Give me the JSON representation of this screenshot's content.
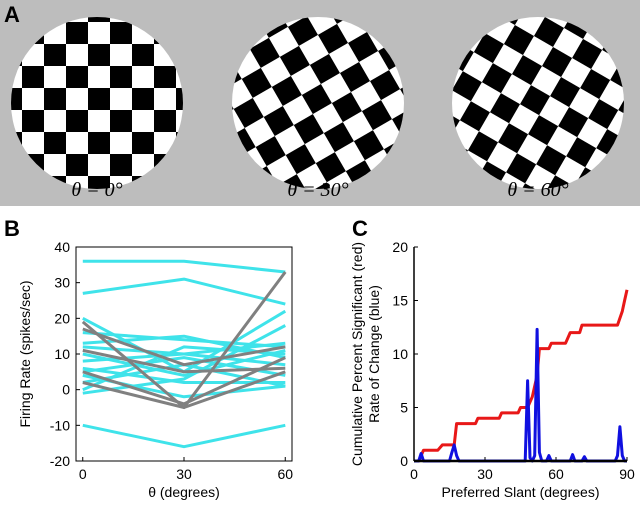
{
  "panel_a": {
    "label": "A",
    "captions": [
      "θ = 0°",
      "θ = 30°",
      "θ = 60°"
    ]
  },
  "chart_data": [
    {
      "type": "line",
      "panel_label": "B",
      "xlabel": "θ (degrees)",
      "ylabel": "Firing Rate (spikes/sec)",
      "x": [
        0,
        30,
        60
      ],
      "xlim": [
        -2,
        62
      ],
      "xticks": [
        0,
        30,
        60
      ],
      "ylim": [
        -20,
        40
      ],
      "yticks": [
        -20,
        -10,
        0,
        10,
        20,
        30,
        40
      ],
      "box": true,
      "series": [
        {
          "color": "#3fe3ea",
          "values": [
            36,
            36,
            33
          ]
        },
        {
          "color": "#3fe3ea",
          "values": [
            27,
            31,
            24
          ]
        },
        {
          "color": "#3fe3ea",
          "values": [
            -10,
            -16,
            -10
          ]
        },
        {
          "color": "#3fe3ea",
          "values": [
            20,
            5,
            22
          ]
        },
        {
          "color": "#3fe3ea",
          "values": [
            16,
            14,
            12
          ]
        },
        {
          "color": "#3fe3ea",
          "values": [
            13,
            15,
            9
          ]
        },
        {
          "color": "#3fe3ea",
          "values": [
            12,
            10,
            7
          ]
        },
        {
          "color": "#3fe3ea",
          "values": [
            10,
            4,
            11
          ]
        },
        {
          "color": "#3fe3ea",
          "values": [
            8,
            10,
            13
          ]
        },
        {
          "color": "#3fe3ea",
          "values": [
            6,
            2,
            2
          ]
        },
        {
          "color": "#3fe3ea",
          "values": [
            5,
            9,
            4
          ]
        },
        {
          "color": "#3fe3ea",
          "values": [
            4,
            -2,
            1
          ]
        },
        {
          "color": "#3fe3ea",
          "values": [
            2,
            7,
            1
          ]
        },
        {
          "color": "#3fe3ea",
          "values": [
            0,
            12,
            10
          ]
        },
        {
          "color": "#3fe3ea",
          "values": [
            -1,
            3,
            18
          ]
        },
        {
          "color": "#808080",
          "values": [
            19,
            -5,
            33
          ]
        },
        {
          "color": "#808080",
          "values": [
            17,
            7,
            12
          ]
        },
        {
          "color": "#808080",
          "values": [
            11,
            5,
            6
          ]
        },
        {
          "color": "#808080",
          "values": [
            5,
            -4,
            9
          ]
        },
        {
          "color": "#808080",
          "values": [
            2,
            -5,
            5
          ]
        }
      ]
    },
    {
      "type": "line",
      "panel_label": "C",
      "xlabel": "Preferred Slant (degrees)",
      "ylabel": [
        "Cumulative Percent Significant (red)",
        "Rate of Change (blue)"
      ],
      "xlim": [
        0,
        90
      ],
      "xticks": [
        0,
        30,
        60,
        90
      ],
      "ylim": [
        0,
        20
      ],
      "yticks": [
        0,
        5,
        10,
        15,
        20
      ],
      "box": false,
      "series": [
        {
          "color": "#e81818",
          "x": [
            0,
            2,
            4,
            10,
            12,
            17,
            18,
            26,
            27,
            36,
            37,
            44,
            45,
            48,
            50,
            52,
            53,
            57,
            58,
            64,
            66,
            70,
            71,
            86,
            88,
            89,
            90
          ],
          "values": [
            0,
            0,
            1,
            1,
            1.5,
            1.5,
            3.5,
            3.5,
            4,
            4,
            4.5,
            4.5,
            5,
            5,
            6,
            8,
            10.5,
            10.5,
            11,
            11,
            12,
            12,
            12.7,
            12.7,
            14,
            15,
            16
          ]
        },
        {
          "color": "#1010e0",
          "x": [
            0,
            2,
            3,
            4,
            15,
            16,
            17,
            18,
            19,
            46,
            47,
            48,
            49,
            50,
            51,
            52,
            53,
            54,
            56,
            57,
            58,
            66,
            67,
            68,
            71,
            72,
            73,
            85,
            86,
            87,
            88,
            89,
            90
          ],
          "values": [
            0,
            0,
            0.7,
            0,
            0,
            0.8,
            1.5,
            0.5,
            0,
            0,
            0,
            7.5,
            0.3,
            0,
            0.5,
            12.3,
            0.8,
            0,
            0,
            0.5,
            0,
            0,
            0.6,
            0,
            0,
            0.4,
            0,
            0,
            0.5,
            3.2,
            0.5,
            0,
            0
          ]
        }
      ]
    }
  ]
}
